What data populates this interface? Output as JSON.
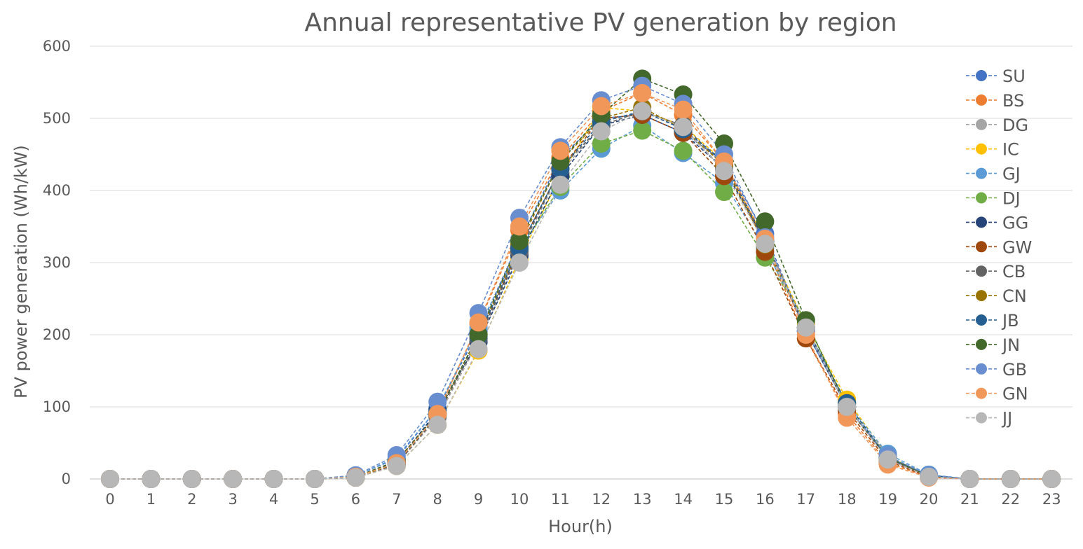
{
  "chart_data": {
    "type": "line",
    "title": "Annual representative PV generation by region",
    "xlabel": "Hour(h)",
    "ylabel": "PV power generation (Wh/kW)",
    "ylim": [
      0,
      600
    ],
    "yticks": [
      0,
      100,
      200,
      300,
      400,
      500,
      600
    ],
    "grid": true,
    "legend_position": "right",
    "line_style": "dashed-with-markers",
    "categories": [
      "0",
      "1",
      "2",
      "3",
      "4",
      "5",
      "6",
      "7",
      "8",
      "9",
      "10",
      "11",
      "12",
      "13",
      "14",
      "15",
      "16",
      "17",
      "18",
      "19",
      "20",
      "21",
      "22",
      "23"
    ],
    "series": [
      {
        "name": "SU",
        "color": "#4472C4",
        "values": [
          0,
          0,
          0,
          0,
          0,
          0,
          5,
          28,
          98,
          205,
          330,
          445,
          500,
          505,
          480,
          440,
          340,
          205,
          100,
          30,
          5,
          0,
          0,
          0
        ]
      },
      {
        "name": "BS",
        "color": "#ED7D31",
        "values": [
          0,
          0,
          0,
          0,
          0,
          0,
          3,
          25,
          92,
          215,
          345,
          445,
          510,
          535,
          505,
          440,
          325,
          195,
          90,
          22,
          3,
          0,
          0,
          0
        ]
      },
      {
        "name": "DG",
        "color": "#A5A5A5",
        "values": [
          0,
          0,
          0,
          0,
          0,
          0,
          2,
          20,
          85,
          190,
          315,
          425,
          490,
          510,
          485,
          430,
          330,
          210,
          100,
          28,
          3,
          0,
          0,
          0
        ]
      },
      {
        "name": "IC",
        "color": "#FFC000",
        "values": [
          0,
          0,
          0,
          0,
          0,
          0,
          2,
          18,
          75,
          178,
          305,
          420,
          515,
          510,
          490,
          440,
          330,
          215,
          110,
          32,
          4,
          0,
          0,
          0
        ]
      },
      {
        "name": "GJ",
        "color": "#5B9BD5",
        "values": [
          0,
          0,
          0,
          0,
          0,
          0,
          4,
          30,
          98,
          210,
          320,
          400,
          458,
          490,
          452,
          410,
          320,
          210,
          105,
          35,
          6,
          0,
          0,
          0
        ]
      },
      {
        "name": "DJ",
        "color": "#70AD47",
        "values": [
          0,
          0,
          0,
          0,
          0,
          0,
          2,
          22,
          90,
          200,
          318,
          405,
          465,
          483,
          455,
          398,
          307,
          220,
          100,
          30,
          4,
          0,
          0,
          0
        ]
      },
      {
        "name": "GG",
        "color": "#264478",
        "values": [
          0,
          0,
          0,
          0,
          0,
          0,
          3,
          22,
          95,
          190,
          310,
          420,
          490,
          505,
          480,
          430,
          330,
          205,
          100,
          28,
          4,
          0,
          0,
          0
        ]
      },
      {
        "name": "GW",
        "color": "#9E480E",
        "values": [
          0,
          0,
          0,
          0,
          0,
          0,
          2,
          20,
          88,
          195,
          320,
          430,
          500,
          505,
          480,
          420,
          315,
          195,
          95,
          25,
          3,
          0,
          0,
          0
        ]
      },
      {
        "name": "CB",
        "color": "#636363",
        "values": [
          0,
          0,
          0,
          0,
          0,
          0,
          2,
          20,
          88,
          195,
          315,
          430,
          490,
          510,
          490,
          435,
          330,
          210,
          100,
          28,
          4,
          0,
          0,
          0
        ]
      },
      {
        "name": "CN",
        "color": "#997300",
        "values": [
          0,
          0,
          0,
          0,
          0,
          0,
          2,
          22,
          90,
          200,
          325,
          440,
          500,
          515,
          485,
          435,
          325,
          210,
          105,
          30,
          4,
          0,
          0,
          0
        ]
      },
      {
        "name": "JB",
        "color": "#255E91",
        "values": [
          0,
          0,
          0,
          0,
          0,
          0,
          3,
          24,
          92,
          198,
          320,
          430,
          495,
          510,
          485,
          440,
          330,
          210,
          105,
          30,
          5,
          0,
          0,
          0
        ]
      },
      {
        "name": "JN",
        "color": "#43682B",
        "values": [
          0,
          0,
          0,
          0,
          0,
          0,
          3,
          25,
          90,
          200,
          330,
          440,
          505,
          555,
          533,
          465,
          357,
          220,
          100,
          30,
          4,
          0,
          0,
          0
        ]
      },
      {
        "name": "GB",
        "color": "#698ED0",
        "values": [
          0,
          0,
          0,
          0,
          0,
          0,
          5,
          33,
          107,
          230,
          362,
          460,
          525,
          545,
          520,
          450,
          335,
          205,
          100,
          32,
          5,
          0,
          0,
          0
        ]
      },
      {
        "name": "GN",
        "color": "#F1975A",
        "values": [
          0,
          0,
          0,
          0,
          0,
          0,
          3,
          22,
          90,
          217,
          350,
          455,
          517,
          535,
          512,
          440,
          333,
          200,
          85,
          20,
          2,
          0,
          0,
          0
        ]
      },
      {
        "name": "JJ",
        "color": "#B7B7B7",
        "values": [
          0,
          0,
          0,
          0,
          0,
          0,
          2,
          18,
          75,
          180,
          300,
          408,
          482,
          510,
          488,
          427,
          326,
          210,
          100,
          27,
          3,
          0,
          0,
          0
        ]
      }
    ]
  }
}
